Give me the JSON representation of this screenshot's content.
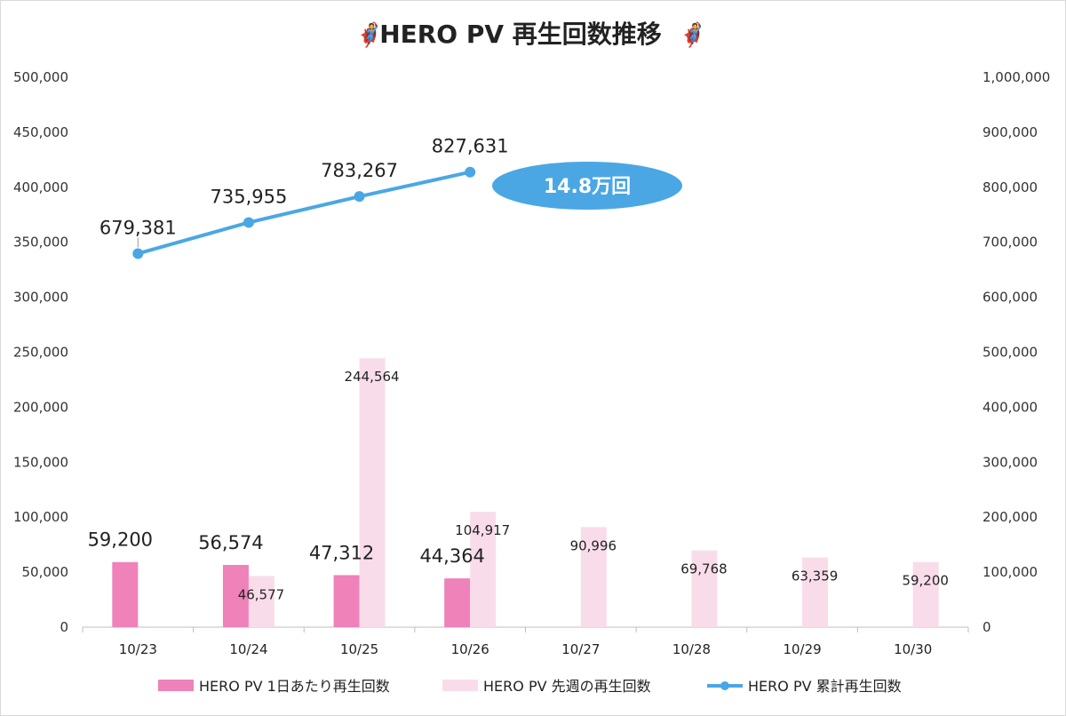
{
  "chart_data": {
    "type": "bar",
    "title": "HERO PV 再生回数推移",
    "title_emoji_left": "🦸",
    "title_emoji_right": "🦸",
    "categories": [
      "10/23",
      "10/24",
      "10/25",
      "10/26",
      "10/27",
      "10/28",
      "10/29",
      "10/30"
    ],
    "left_axis": {
      "ylim": [
        0,
        500000
      ],
      "ticks": [
        "0",
        "50,000",
        "100,000",
        "150,000",
        "200,000",
        "250,000",
        "300,000",
        "350,000",
        "400,000",
        "450,000",
        "500,000"
      ]
    },
    "right_axis": {
      "ylim": [
        0,
        1000000
      ],
      "ticks": [
        "0",
        "100,000",
        "200,000",
        "300,000",
        "400,000",
        "500,000",
        "600,000",
        "700,000",
        "800,000",
        "900,000",
        "1,000,000"
      ]
    },
    "series": [
      {
        "name": "HERO PV 1日あたり再生回数",
        "kind": "bar",
        "axis": "left",
        "color": "#ee82b9",
        "values": [
          59200,
          56574,
          47312,
          44364,
          null,
          null,
          null,
          null
        ],
        "labels": [
          "59,200",
          "56,574",
          "47,312",
          "44,364"
        ]
      },
      {
        "name": "HERO PV 先週の再生回数",
        "kind": "bar",
        "axis": "left",
        "color": "#f9dcea",
        "values": [
          null,
          46577,
          244564,
          104917,
          90996,
          69768,
          63359,
          59200
        ],
        "labels": [
          "",
          "46,577",
          "244,564",
          "104,917",
          "90,996",
          "69,768",
          "63,359",
          "59,200"
        ]
      },
      {
        "name": "HERO PV 累計再生回数",
        "kind": "line",
        "axis": "right",
        "color": "#4aa7e4",
        "values": [
          679381,
          735955,
          783267,
          827631,
          null,
          null,
          null,
          null
        ],
        "labels": [
          "679,381",
          "735,955",
          "783,267",
          "827,631"
        ]
      }
    ],
    "annotation": {
      "text": "14.8万回",
      "color": "#4aa7e4"
    },
    "grid": false,
    "legend_position": "bottom"
  }
}
